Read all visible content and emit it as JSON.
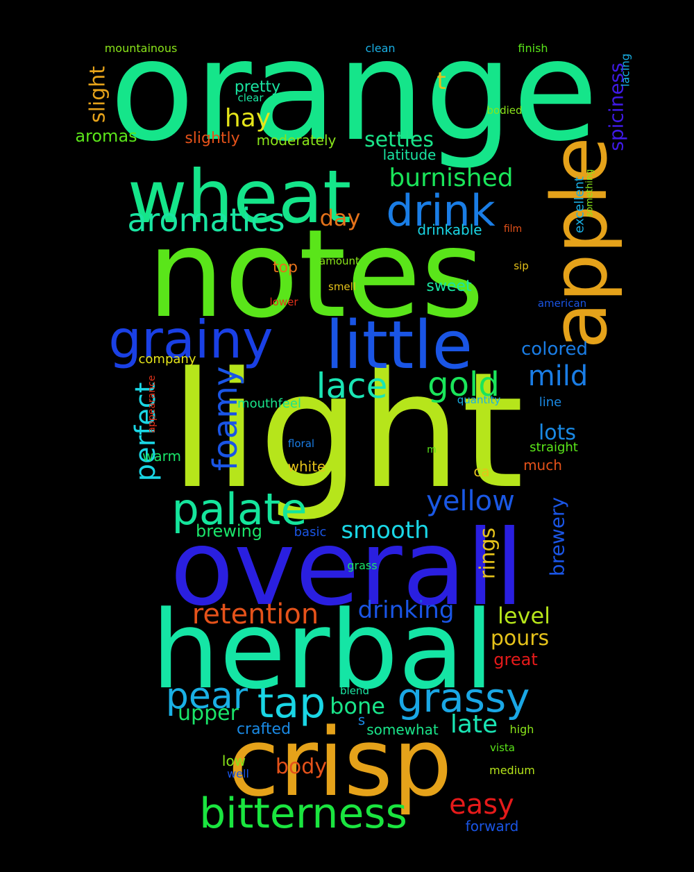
{
  "words": [
    {
      "text": "orange",
      "color": "#15e58a"
    },
    {
      "text": "notes",
      "color": "#5ae51a"
    },
    {
      "text": "light",
      "color": "#b6e51b"
    },
    {
      "text": "overall",
      "color": "#2a1fe0"
    },
    {
      "text": "herbal",
      "color": "#15e5a5"
    },
    {
      "text": "crisp",
      "color": "#e5a21a"
    },
    {
      "text": "wheat",
      "color": "#15e58a"
    },
    {
      "text": "apple",
      "color": "#e5a21a"
    },
    {
      "text": "little",
      "color": "#1a55e5"
    },
    {
      "text": "grainy",
      "color": "#1a40e5"
    },
    {
      "text": "drink",
      "color": "#1a7de5"
    },
    {
      "text": "palate",
      "color": "#15e59c"
    },
    {
      "text": "bitterness",
      "color": "#1ae53f"
    },
    {
      "text": "grassy",
      "color": "#1aa7e5"
    },
    {
      "text": "pear",
      "color": "#1ab0e5"
    },
    {
      "text": "tap",
      "color": "#1ad6e5"
    },
    {
      "text": "aromatics",
      "color": "#1ae5a2"
    },
    {
      "text": "lace",
      "color": "#1ae5b4"
    },
    {
      "text": "gold",
      "color": "#1ae55a"
    },
    {
      "text": "foamy",
      "color": "#1a55e5"
    },
    {
      "text": "retention",
      "color": "#e5521a"
    },
    {
      "text": "yellow",
      "color": "#1a58e5"
    },
    {
      "text": "burnished",
      "color": "#1ae55a"
    },
    {
      "text": "mild",
      "color": "#1a7de5"
    },
    {
      "text": "perfect",
      "color": "#1ad6e5"
    },
    {
      "text": "easy",
      "color": "#e51a1a"
    },
    {
      "text": "drinking",
      "color": "#1a55e5"
    },
    {
      "text": "smooth",
      "color": "#1ad6e5"
    },
    {
      "text": "bone",
      "color": "#1ae58a"
    },
    {
      "text": "late",
      "color": "#1ae5b4"
    },
    {
      "text": "rings",
      "color": "#e5c21a"
    },
    {
      "text": "brewery",
      "color": "#1a55e5"
    },
    {
      "text": "level",
      "color": "#b6e51a"
    },
    {
      "text": "pours",
      "color": "#e5c21a"
    },
    {
      "text": "body",
      "color": "#e5521a"
    },
    {
      "text": "hay",
      "color": "#e5e51a"
    },
    {
      "text": "settles",
      "color": "#1ae58a"
    },
    {
      "text": "spiciness",
      "color": "#3f1ae5"
    },
    {
      "text": "slight",
      "color": "#e5a21a"
    },
    {
      "text": "upper",
      "color": "#1ae56a"
    },
    {
      "text": "lots",
      "color": "#1a8ae5"
    },
    {
      "text": "day",
      "color": "#e5721a"
    },
    {
      "text": "t",
      "color": "#e5c21a"
    },
    {
      "text": "colored",
      "color": "#1a7de5"
    },
    {
      "text": "aromas",
      "color": "#5ae51a"
    },
    {
      "text": "slightly",
      "color": "#e5521a"
    },
    {
      "text": "pretty",
      "color": "#1ae5a2"
    },
    {
      "text": "brewing",
      "color": "#1ae56a"
    },
    {
      "text": "great",
      "color": "#e51a1a"
    },
    {
      "text": "forward",
      "color": "#1a55e5"
    },
    {
      "text": "crafted",
      "color": "#1a8ae5"
    },
    {
      "text": "somewhat",
      "color": "#1ae58a"
    },
    {
      "text": "moderately",
      "color": "#8ae51a"
    },
    {
      "text": "latitude",
      "color": "#1ae5a2"
    },
    {
      "text": "drinkable",
      "color": "#1ad6e5"
    },
    {
      "text": "excellent",
      "color": "#1ab0e5"
    },
    {
      "text": "top",
      "color": "#e5721a"
    },
    {
      "text": "sweet",
      "color": "#1ae5a2"
    },
    {
      "text": "company",
      "color": "#e5e51a"
    },
    {
      "text": "mouthfeel",
      "color": "#1ae58a"
    },
    {
      "text": "warm",
      "color": "#1ae56a"
    },
    {
      "text": "white",
      "color": "#e5c21a"
    },
    {
      "text": "much",
      "color": "#e5521a"
    },
    {
      "text": "straight",
      "color": "#5ae51a"
    },
    {
      "text": "line",
      "color": "#1a8ae5"
    },
    {
      "text": "ca",
      "color": "#e5c21a"
    },
    {
      "text": "basic",
      "color": "#1a55e5"
    },
    {
      "text": "s",
      "color": "#1a8ae5"
    },
    {
      "text": "low",
      "color": "#8ae51a"
    },
    {
      "text": "well",
      "color": "#1a55e5"
    },
    {
      "text": "medium",
      "color": "#b6e51a"
    },
    {
      "text": "high",
      "color": "#8ae51a"
    },
    {
      "text": "lacing",
      "color": "#1ab0e5"
    },
    {
      "text": "mountainous",
      "color": "#8ae51a"
    },
    {
      "text": "clean",
      "color": "#1ab0e5"
    },
    {
      "text": "finish",
      "color": "#5ae51a"
    },
    {
      "text": "bodied",
      "color": "#8ae51a"
    },
    {
      "text": "clear",
      "color": "#1ae5a2"
    },
    {
      "text": "something",
      "color": "#8ae51a"
    },
    {
      "text": "film",
      "color": "#e5521a"
    },
    {
      "text": "sip",
      "color": "#e5c21a"
    },
    {
      "text": "amount",
      "color": "#8ae51a"
    },
    {
      "text": "smell",
      "color": "#e5c21a"
    },
    {
      "text": "lower",
      "color": "#e5321a"
    },
    {
      "text": "american",
      "color": "#1a55e5"
    },
    {
      "text": "quantity",
      "color": "#1ab0e5"
    },
    {
      "text": "floral",
      "color": "#1a7de5"
    },
    {
      "text": "m",
      "color": "#5ae51a"
    },
    {
      "text": "appearance",
      "color": "#e5321a"
    },
    {
      "text": "grass",
      "color": "#1ae56a"
    },
    {
      "text": "blend",
      "color": "#1ae5a2"
    },
    {
      "text": "vista",
      "color": "#5ae51a"
    }
  ]
}
